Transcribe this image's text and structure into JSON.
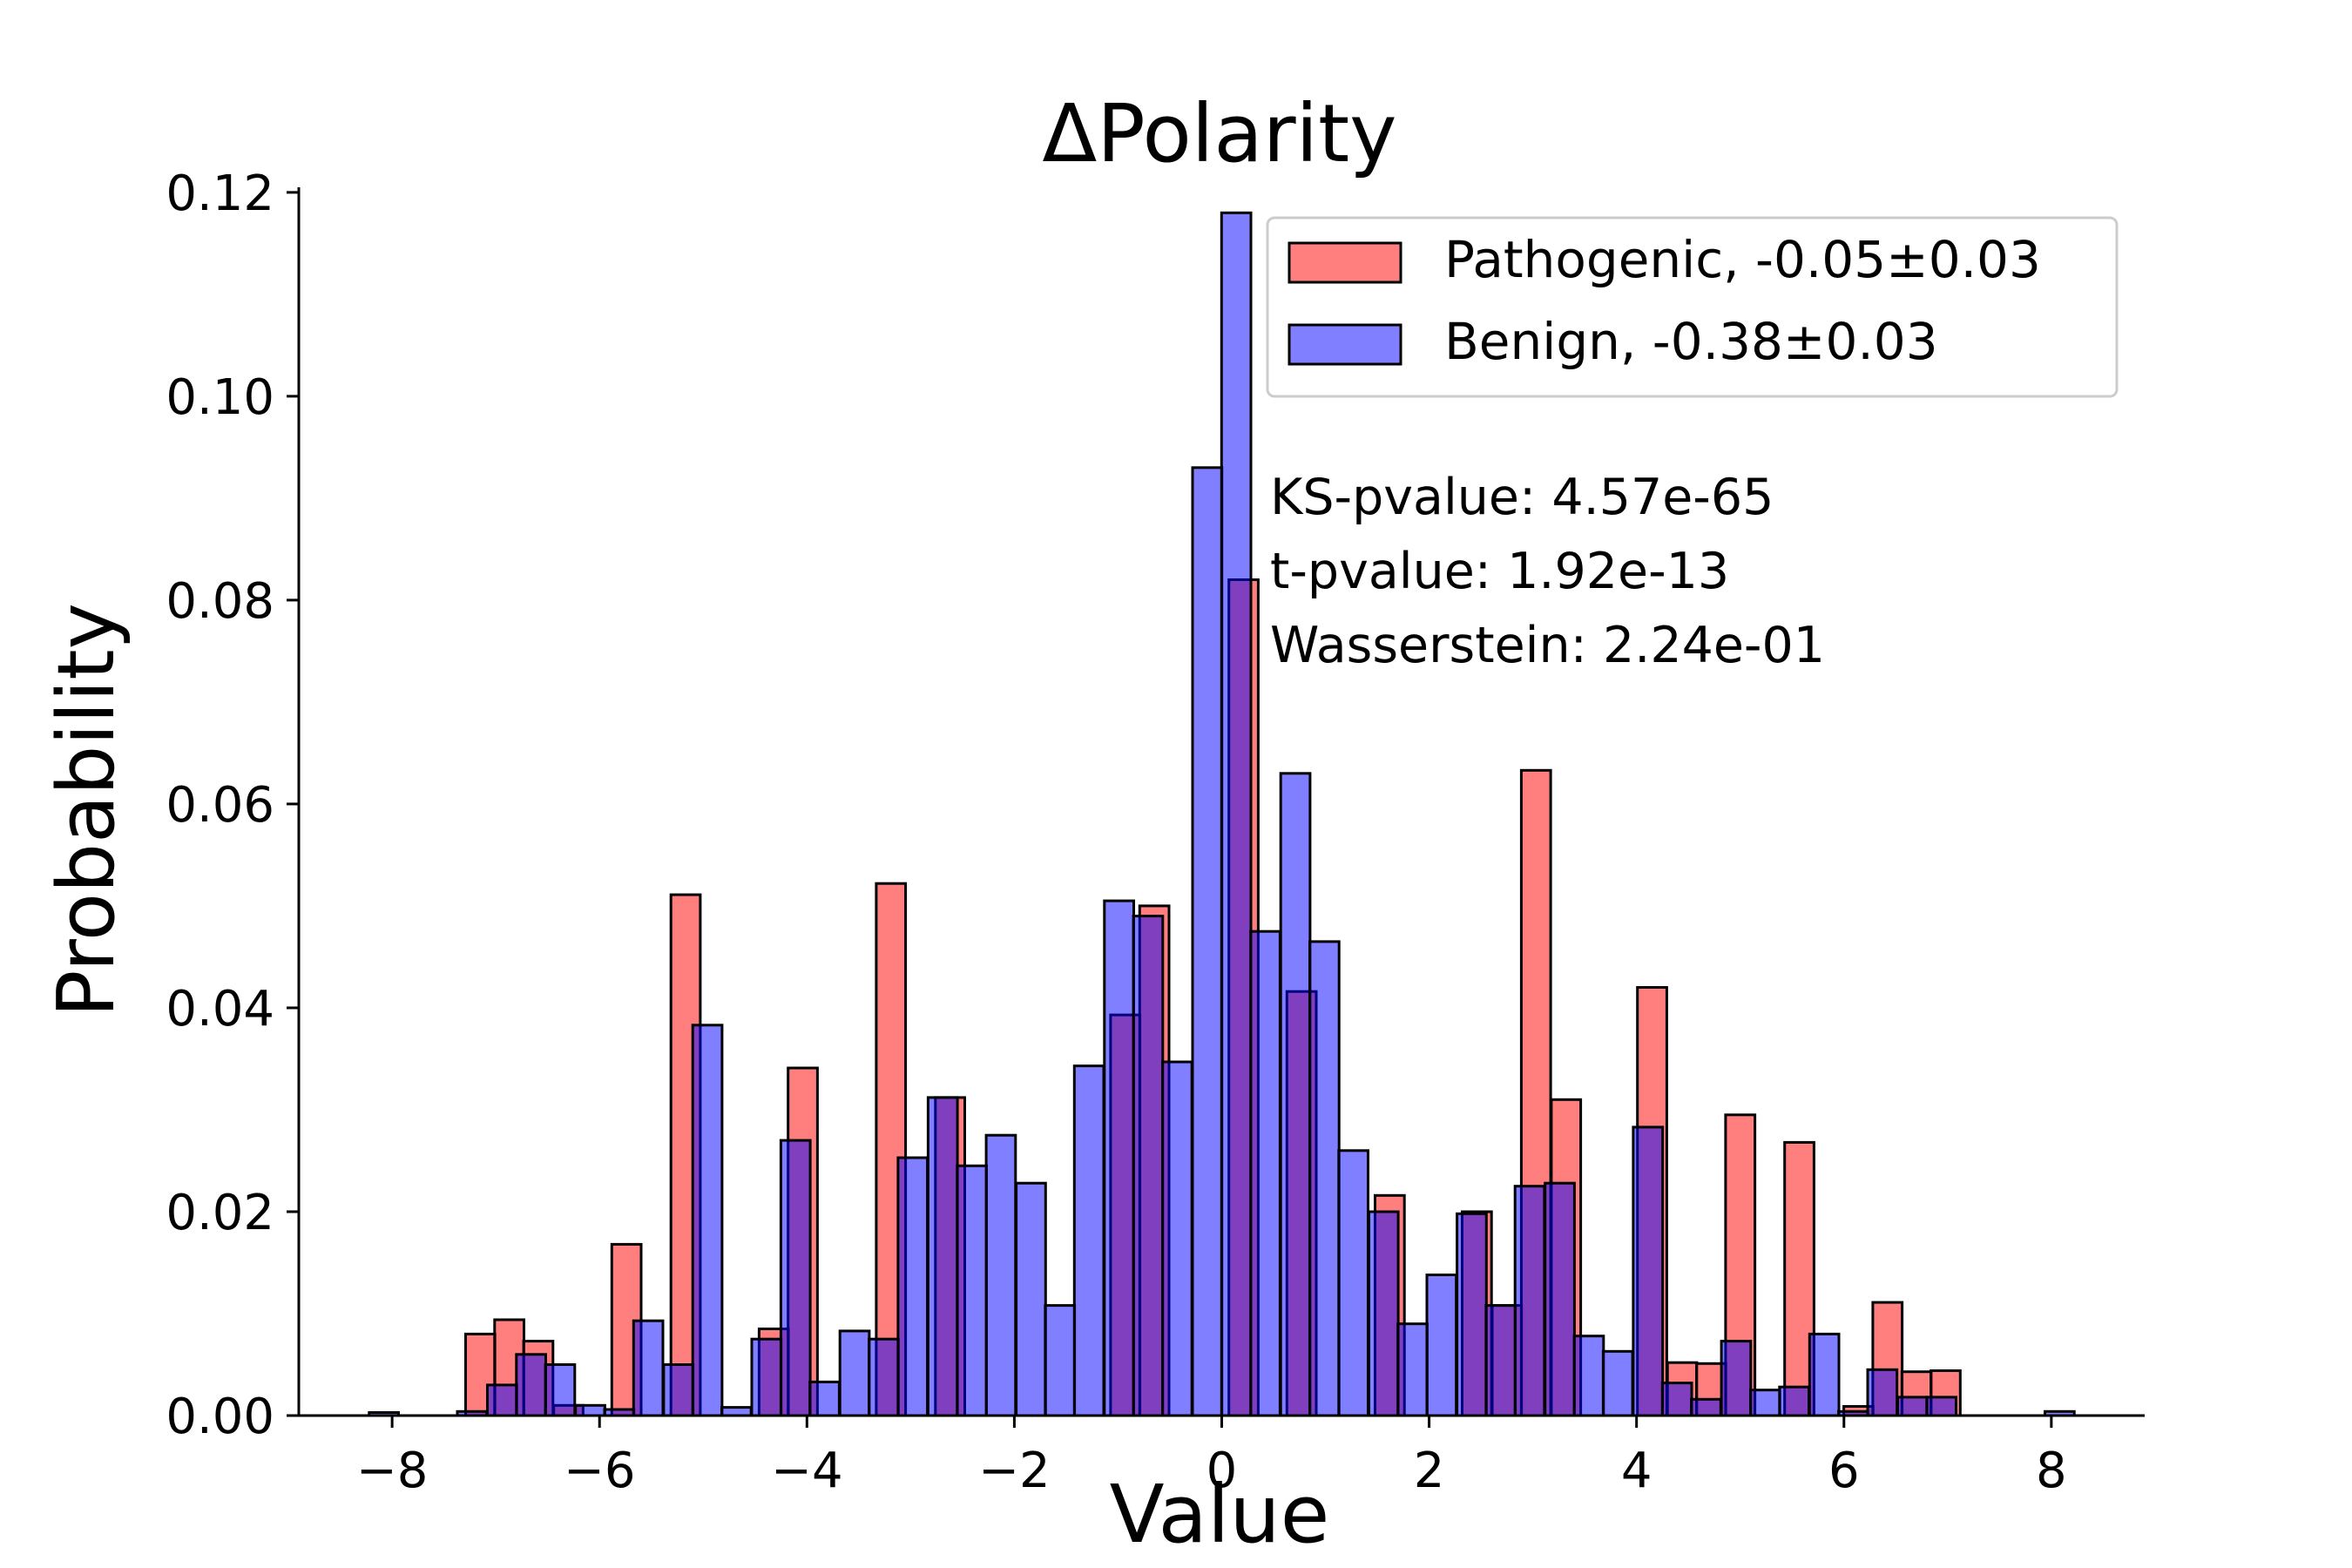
{
  "chart_data": {
    "type": "bar",
    "title": "ΔPolarity",
    "xlabel": "Value",
    "ylabel": "Probability",
    "xlim": [
      -8.9,
      8.9
    ],
    "ylim": [
      0,
      0.1205
    ],
    "xticks": [
      "−8",
      "−6",
      "−4",
      "−2",
      "0",
      "2",
      "4",
      "6",
      "8"
    ],
    "xtick_values": [
      -8,
      -6,
      -4,
      -2,
      0,
      2,
      4,
      6,
      8
    ],
    "yticks": [
      "0.00",
      "0.02",
      "0.04",
      "0.06",
      "0.08",
      "0.10",
      "0.12"
    ],
    "ytick_values": [
      0,
      0.02,
      0.04,
      0.06,
      0.08,
      0.1,
      0.12
    ],
    "bin_width": 0.283,
    "legend_position": "top-right",
    "grid": false,
    "series": [
      {
        "name": "Pathogenic, -0.05±0.03",
        "color": "#ff0000",
        "bins": [
          [
            -7.15,
            0.008
          ],
          [
            -6.87,
            0.0094
          ],
          [
            -6.59,
            0.0073
          ],
          [
            -6.3,
            0.001
          ],
          [
            -5.74,
            0.0168
          ],
          [
            -5.17,
            0.0511
          ],
          [
            -4.32,
            0.0085
          ],
          [
            -4.04,
            0.0341
          ],
          [
            -3.19,
            0.0522
          ],
          [
            -2.62,
            0.0312
          ],
          [
            -0.93,
            0.0393
          ],
          [
            -0.65,
            0.05
          ],
          [
            0.21,
            0.082
          ],
          [
            0.77,
            0.0416
          ],
          [
            1.62,
            0.0216
          ],
          [
            2.46,
            0.02
          ],
          [
            2.75,
            0.0108
          ],
          [
            3.03,
            0.0633
          ],
          [
            3.32,
            0.031
          ],
          [
            4.15,
            0.042
          ],
          [
            4.44,
            0.0052
          ],
          [
            4.72,
            0.0051
          ],
          [
            5.0,
            0.0295
          ],
          [
            5.57,
            0.0268
          ],
          [
            6.14,
            0.0009
          ],
          [
            6.42,
            0.0111
          ],
          [
            6.7,
            0.0043
          ],
          [
            6.98,
            0.0044
          ]
        ]
      },
      {
        "name": "Benign, -0.38±0.03",
        "color": "#0000ff",
        "bins": [
          [
            -8.08,
            0.0003
          ],
          [
            -7.23,
            0.0004
          ],
          [
            -6.94,
            0.003
          ],
          [
            -6.66,
            0.006
          ],
          [
            -6.38,
            0.005
          ],
          [
            -6.09,
            0.001
          ],
          [
            -5.81,
            0.0006
          ],
          [
            -5.53,
            0.0093
          ],
          [
            -5.24,
            0.005
          ],
          [
            -4.96,
            0.0383
          ],
          [
            -4.68,
            0.0008
          ],
          [
            -4.39,
            0.0075
          ],
          [
            -4.11,
            0.027
          ],
          [
            -3.83,
            0.0033
          ],
          [
            -3.54,
            0.0083
          ],
          [
            -3.26,
            0.0075
          ],
          [
            -2.98,
            0.0253
          ],
          [
            -2.69,
            0.0312
          ],
          [
            -2.41,
            0.0245
          ],
          [
            -2.13,
            0.0275
          ],
          [
            -1.84,
            0.0228
          ],
          [
            -1.56,
            0.0108
          ],
          [
            -1.28,
            0.0343
          ],
          [
            -0.99,
            0.0505
          ],
          [
            -0.71,
            0.049
          ],
          [
            -0.43,
            0.0347
          ],
          [
            -0.14,
            0.093
          ],
          [
            0.14,
            0.118
          ],
          [
            0.42,
            0.0475
          ],
          [
            0.71,
            0.063
          ],
          [
            0.99,
            0.0465
          ],
          [
            1.27,
            0.026
          ],
          [
            1.56,
            0.02
          ],
          [
            1.84,
            0.009
          ],
          [
            2.12,
            0.0138
          ],
          [
            2.41,
            0.0198
          ],
          [
            2.69,
            0.0108
          ],
          [
            2.97,
            0.0225
          ],
          [
            3.26,
            0.0228
          ],
          [
            3.54,
            0.0078
          ],
          [
            3.82,
            0.0063
          ],
          [
            4.11,
            0.0283
          ],
          [
            4.39,
            0.0032
          ],
          [
            4.67,
            0.0016
          ],
          [
            4.96,
            0.0073
          ],
          [
            5.24,
            0.0025
          ],
          [
            5.52,
            0.0028
          ],
          [
            5.81,
            0.008
          ],
          [
            6.09,
            0.0004
          ],
          [
            6.37,
            0.0045
          ],
          [
            6.66,
            0.0018
          ],
          [
            6.94,
            0.0018
          ],
          [
            8.08,
            0.0004
          ]
        ]
      }
    ],
    "annotations": [
      "KS-pvalue: 4.57e-65",
      "t-pvalue: 1.92e-13",
      "Wasserstein: 2.24e-01"
    ]
  }
}
